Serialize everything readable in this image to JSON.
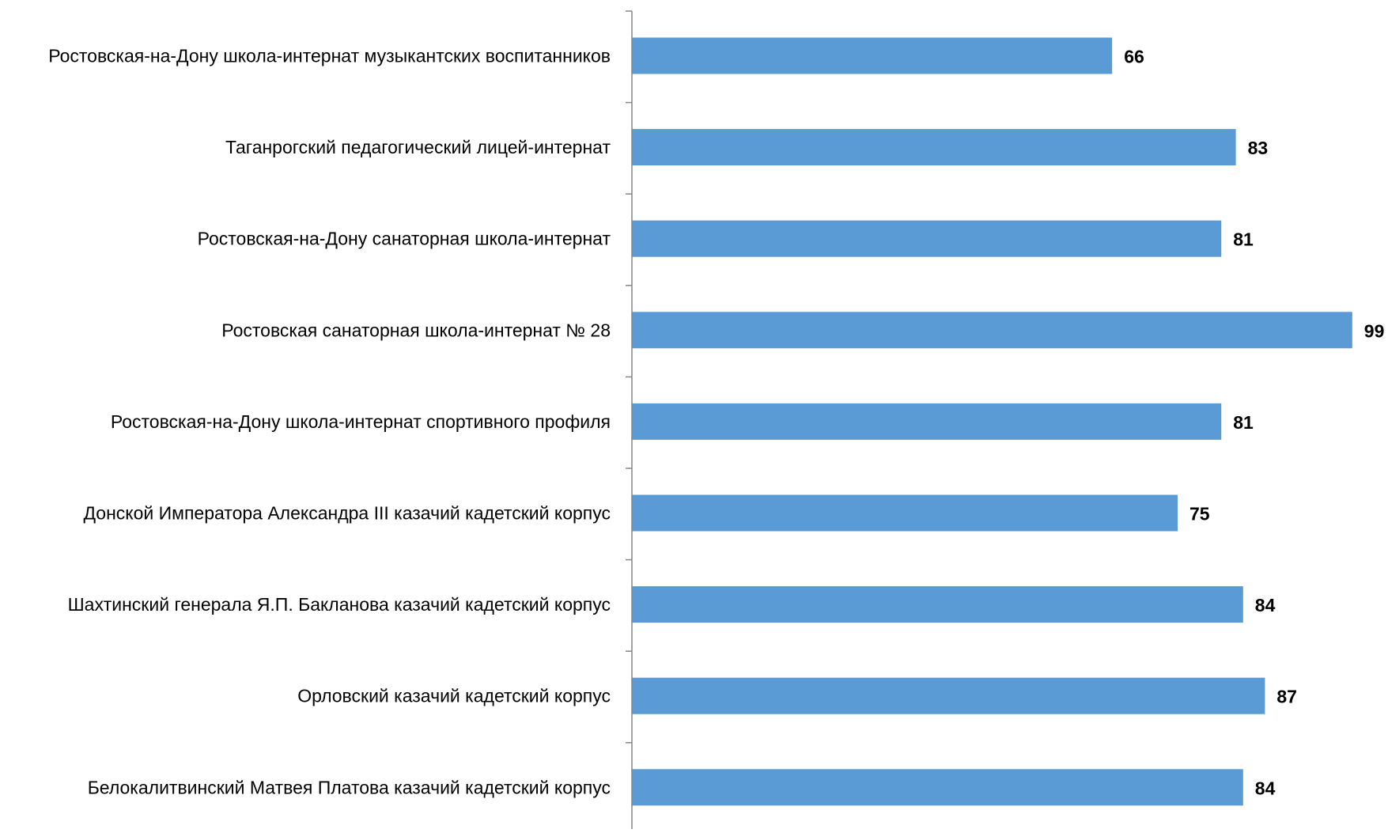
{
  "chart_data": {
    "type": "bar",
    "orientation": "horizontal",
    "title": "",
    "xlabel": "",
    "ylabel": "",
    "grid": false,
    "legend": "none",
    "data_labels": true,
    "colors": {
      "bar": "#5B9BD5",
      "axis": "#868686",
      "text": "#000000"
    },
    "categories": [
      "Ростовская-на-Дону школа-интернат музыкантских воспитанников",
      "Таганрогский педагогический лицей-интернат",
      "Ростовская-на-Дону санаторная школа-интернат",
      "Ростовская санаторная школа-интернат № 28",
      "Ростовская-на-Дону школа-интернат спортивного профиля",
      "Донской Императора Александра III казачий кадетский корпус",
      "Шахтинский генерала Я.П. Бакланова казачий кадетский корпус",
      "Орловский казачий кадетский корпус",
      "Белокалитвинский Матвея Платова казачий кадетский корпус"
    ],
    "values": [
      66,
      83,
      81,
      99,
      81,
      75,
      84,
      87,
      84
    ],
    "xlim": [
      0,
      100
    ]
  }
}
